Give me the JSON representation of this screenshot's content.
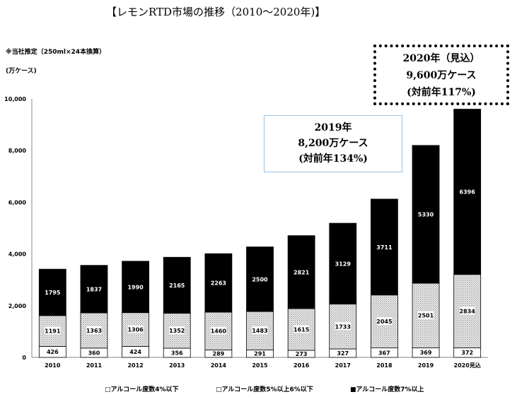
{
  "chart_data": {
    "type": "bar",
    "stacked": true,
    "title": "【レモンRTD市場の推移（2010～2020年)】",
    "note": "※当社推定（250ml×24本換算）",
    "ylabel": "(万ケース)",
    "ylim": [
      0,
      10000
    ],
    "yticks": [
      "0",
      "2,000",
      "4,000",
      "6,000",
      "8,000",
      "10,000"
    ],
    "grid": false,
    "legend_position": "bottom",
    "categories": [
      "2010",
      "2011",
      "2012",
      "2013",
      "2014",
      "2015",
      "2016",
      "2017",
      "2018",
      "2019",
      "2020見込"
    ],
    "series": [
      {
        "name": "□アルコール度数4%以下",
        "color": "#ffffff",
        "values": [
          426,
          360,
          424,
          356,
          289,
          291,
          273,
          327,
          367,
          369,
          372
        ]
      },
      {
        "name": "□アルコール度数5%以上6%以下",
        "color": "#d9d9d9",
        "values": [
          1191,
          1363,
          1306,
          1352,
          1460,
          1483,
          1615,
          1733,
          2045,
          2501,
          2834
        ]
      },
      {
        "name": "■アルコール度数7%以上",
        "color": "#000000",
        "values": [
          1795,
          1837,
          1990,
          2165,
          2263,
          2500,
          2821,
          3129,
          3711,
          5330,
          6396
        ]
      }
    ],
    "annotations": [
      {
        "lines": [
          "2019年",
          "8,200万ケース",
          "(対前年134%)"
        ]
      },
      {
        "lines": [
          "2020年（見込）",
          "9,600万ケース",
          "(対前年117%)"
        ]
      }
    ]
  }
}
